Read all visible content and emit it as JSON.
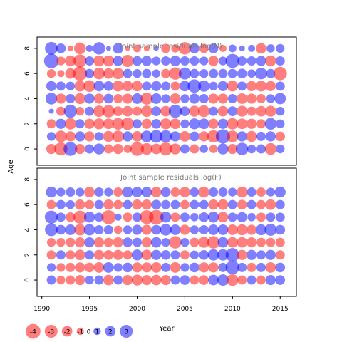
{
  "chart_data": [
    {
      "type": "bubble",
      "title": "Joint sample residuals log(N)",
      "ylabel": "Age",
      "xlim": [
        1989.5,
        2016.7
      ],
      "ylim": [
        -1.3,
        8.9
      ],
      "yticks": [
        0,
        2,
        4,
        6,
        8
      ],
      "years": [
        1991,
        1992,
        1993,
        1994,
        1995,
        1996,
        1997,
        1998,
        1999,
        2000,
        2001,
        2002,
        2003,
        2004,
        2005,
        2006,
        2007,
        2008,
        2009,
        2010,
        2011,
        2012,
        2013,
        2014,
        2015
      ],
      "ages": [
        0,
        1,
        2,
        3,
        4,
        5,
        6,
        7,
        8
      ],
      "residuals": [
        [
          -1.2,
          -2.0,
          2.2,
          -1.2,
          1.0,
          1.4,
          -1.0,
          -1.2,
          -0.8,
          -2.2,
          -1.6,
          -1.3,
          -2.0,
          -1.4,
          1.0,
          -1.0,
          0.8,
          -0.8,
          1.4,
          -1.2,
          1.8,
          0.9,
          1.0,
          -1.6,
          0.9
        ],
        [
          0.9,
          -1.6,
          -1.2,
          1.2,
          -1.2,
          0.9,
          -1.4,
          -1.6,
          1.2,
          -1.3,
          1.6,
          1.9,
          1.8,
          1.2,
          -1.3,
          1.1,
          -1.2,
          -1.8,
          2.4,
          -1.6,
          1.2,
          -1.4,
          1.0,
          1.2,
          -1.1
        ],
        [
          -1.0,
          1.2,
          -1.5,
          1.0,
          -1.2,
          -1.4,
          -1.3,
          -1.6,
          -1.8,
          1.0,
          -1.2,
          1.1,
          -1.4,
          -1.3,
          0.9,
          1.4,
          1.3,
          -1.2,
          1.2,
          -1.5,
          -1.3,
          -1.2,
          -1.0,
          1.6,
          0.9
        ],
        [
          0.3,
          -1.0,
          2.0,
          -0.9,
          1.0,
          -1.5,
          -1.8,
          -1.1,
          -1.3,
          -1.0,
          -1.5,
          1.1,
          -1.3,
          2.0,
          1.1,
          -1.4,
          -1.6,
          1.0,
          -1.3,
          1.1,
          -1.4,
          -1.0,
          -1.3,
          -1.4,
          0.9
        ],
        [
          1.6,
          -1.2,
          1.0,
          -1.4,
          1.2,
          -1.2,
          1.1,
          -1.0,
          -1.2,
          1.3,
          -1.7,
          1.3,
          0.9,
          -1.3,
          0.9,
          1.2,
          1.0,
          -1.2,
          -1.2,
          1.0,
          -1.3,
          -1.2,
          -1.0,
          0.9,
          1.5
        ],
        [
          1.2,
          1.0,
          0.9,
          -1.4,
          -1.6,
          1.3,
          1.1,
          -1.4,
          -1.3,
          -1.3,
          1.0,
          1.2,
          1.0,
          -1.0,
          1.3,
          2.1,
          1.5,
          0.9,
          1.2,
          -1.4,
          1.0,
          -1.2,
          -1.4,
          -1.2,
          1.0
        ],
        [
          -0.9,
          -0.6,
          -1.3,
          -2.4,
          1.0,
          -1.6,
          -1.3,
          -1.5,
          1.0,
          0.9,
          1.0,
          0.8,
          -1.0,
          -1.8,
          1.7,
          1.0,
          0.9,
          1.0,
          1.0,
          1.0,
          1.1,
          0.8,
          1.6,
          1.0,
          -2.1
        ],
        [
          2.5,
          -0.9,
          -1.4,
          -2.0,
          1.0,
          -1.4,
          -1.4,
          1.2,
          -1.7,
          1.1,
          1.2,
          0.9,
          1.0,
          1.3,
          1.0,
          1.0,
          0.9,
          -1.2,
          0.9,
          2.3,
          1.0,
          1.0,
          1.2,
          -1.4,
          1.0
        ],
        [
          1.9,
          1.1,
          -0.4,
          -1.6,
          0.6,
          1.8,
          0.3,
          1.3,
          -0.3,
          -0.7,
          -0.4,
          0.3,
          -1.0,
          -0.8,
          -1.8,
          1.2,
          -1.0,
          1.1,
          -0.6,
          0.7,
          0.4,
          0.6,
          -1.3,
          0.8,
          0.9
        ]
      ]
    },
    {
      "type": "bubble",
      "title": "Joint sample residuals log(F)",
      "xlabel": "Year",
      "xlim": [
        1989.5,
        2016.7
      ],
      "ylim": [
        -1.3,
        8.9
      ],
      "xticks": [
        1990,
        1995,
        2000,
        2005,
        2010,
        2015
      ],
      "yticks": [
        0,
        2,
        4,
        6,
        8
      ],
      "years": [
        1991,
        1992,
        1993,
        1994,
        1995,
        1996,
        1997,
        1998,
        1999,
        2000,
        2001,
        2002,
        2003,
        2004,
        2005,
        2006,
        2007,
        2008,
        2009,
        2010,
        2011,
        2012,
        2013,
        2014,
        2015
      ],
      "ages": [
        0,
        1,
        2,
        3,
        4,
        5,
        6,
        7
      ],
      "residuals": [
        [
          1.0,
          -0.9,
          -1.0,
          -1.2,
          0.9,
          1.0,
          -1.3,
          1.0,
          -1.2,
          -1.4,
          -1.2,
          -1.3,
          -1.2,
          1.0,
          1.1,
          -1.0,
          -1.1,
          1.3,
          1.5,
          -1.6,
          -1.0,
          1.0,
          -1.0,
          1.2,
          1.1
        ],
        [
          0.9,
          -0.9,
          -1.0,
          -1.2,
          -1.1,
          -1.3,
          1.3,
          0.9,
          1.1,
          -1.2,
          -1.2,
          -1.3,
          1.0,
          -1.3,
          0.9,
          1.1,
          -1.2,
          -1.2,
          1.0,
          2.2,
          1.0,
          -1.0,
          1.0,
          -1.3,
          1.1
        ],
        [
          -1.0,
          1.0,
          -1.0,
          -1.3,
          1.0,
          -1.2,
          -1.1,
          -1.2,
          -1.0,
          1.4,
          -1.3,
          1.2,
          1.1,
          1.0,
          -1.0,
          0.9,
          1.1,
          1.5,
          1.5,
          2.2,
          -1.2,
          1.2,
          1.0,
          1.2,
          -1.0
        ],
        [
          -0.9,
          -0.9,
          -1.0,
          -1.2,
          1.2,
          -1.2,
          -1.0,
          -1.2,
          1.1,
          1.0,
          -1.2,
          1.3,
          0.9,
          -1.8,
          0.9,
          -1.0,
          -1.4,
          -1.8,
          1.3,
          -1.3,
          -1.3,
          -1.2,
          -1.0,
          -1.0,
          -1.0
        ],
        [
          1.9,
          1.1,
          1.3,
          -1.5,
          1.5,
          1.0,
          1.0,
          -0.8,
          0.9,
          1.2,
          -1.2,
          1.1,
          1.6,
          1.3,
          -1.2,
          0.9,
          1.0,
          1.3,
          1.3,
          -1.3,
          -1.4,
          -1.2,
          1.4,
          1.7,
          1.1
        ],
        [
          2.0,
          1.0,
          -1.1,
          -2.0,
          1.4,
          1.0,
          -2.3,
          0.6,
          -1.0,
          1.0,
          -2.2,
          -2.5,
          1.4,
          -1.0,
          1.0,
          0.8,
          1.1,
          1.4,
          -1.3,
          1.0,
          1.2,
          0.8,
          -1.0,
          1.0,
          1.0
        ],
        [
          -1.0,
          1.0,
          0.9,
          -1.2,
          -1.0,
          1.0,
          -1.2,
          -1.0,
          1.0,
          -1.2,
          -1.2,
          1.1,
          1.0,
          1.0,
          -1.0,
          1.0,
          1.0,
          -1.2,
          -1.3,
          1.0,
          -1.1,
          1.0,
          -1.0,
          -1.3,
          1.0
        ],
        [
          1.4,
          0.9,
          1.0,
          0.9,
          -1.3,
          1.0,
          0.9,
          -1.0,
          1.4,
          1.3,
          1.3,
          -1.3,
          1.1,
          -1.0,
          -1.3,
          1.0,
          -1.4,
          1.0,
          1.0,
          0.9,
          -1.4,
          1.0,
          -1.0,
          0.9,
          1.4
        ]
      ]
    }
  ],
  "legend": {
    "values": [
      -4,
      -3,
      -2,
      -1,
      0,
      1,
      2,
      3
    ],
    "labels": [
      "-4",
      "-3",
      "-2",
      "-1",
      "0",
      "1",
      "2",
      "3"
    ]
  },
  "colors": {
    "positive": "#0000ff",
    "negative": "#ff0000",
    "title_text": "#777777"
  }
}
